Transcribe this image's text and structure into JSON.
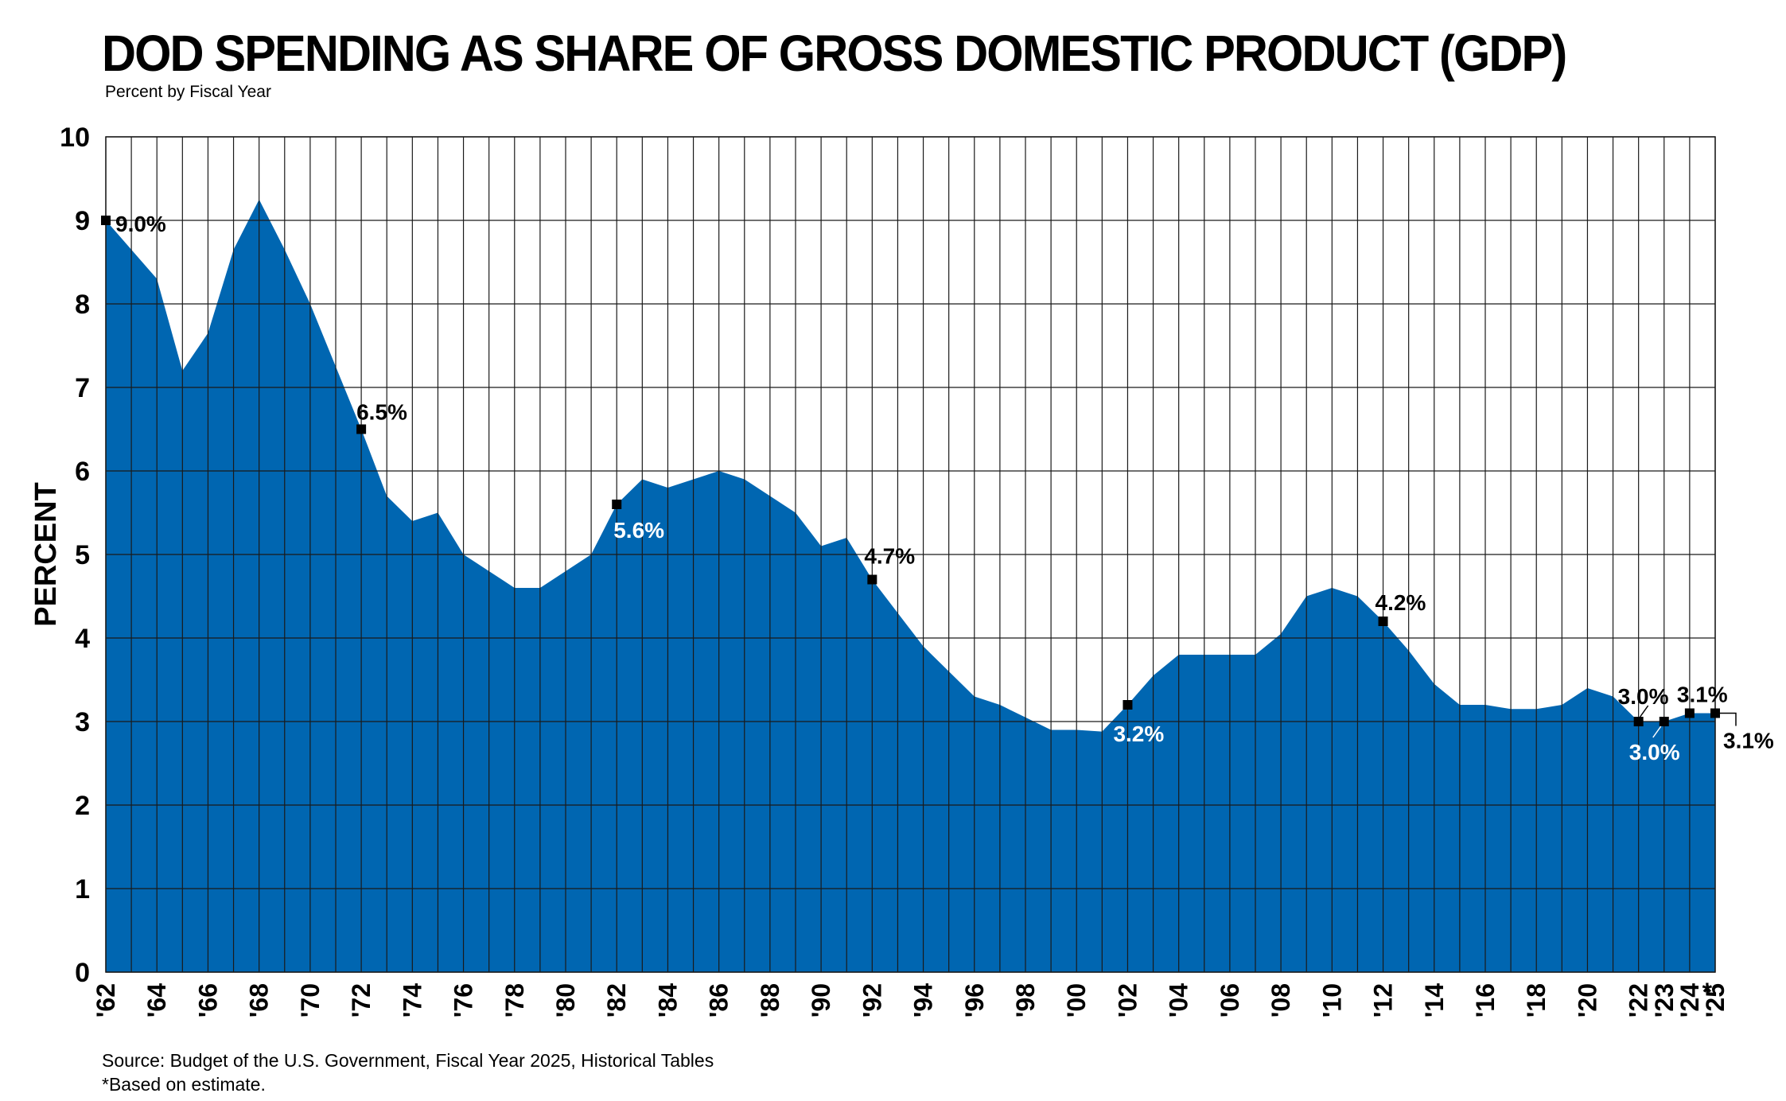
{
  "chart_data": {
    "type": "area",
    "title": "DOD SPENDING AS SHARE OF GROSS DOMESTIC PRODUCT (GDP)",
    "subtitle": "Percent by Fiscal Year",
    "ylabel": "PERCENT",
    "xlabel": "",
    "ylim": [
      0,
      10
    ],
    "yticks": [
      0,
      1,
      2,
      3,
      4,
      5,
      6,
      7,
      8,
      9,
      10
    ],
    "grid": true,
    "colors": {
      "area": "#0066b1",
      "grid": "#1a1a1a",
      "marker": "#000000"
    },
    "x": [
      1962,
      1963,
      1964,
      1965,
      1966,
      1967,
      1968,
      1969,
      1970,
      1971,
      1972,
      1973,
      1974,
      1975,
      1976,
      1977,
      1978,
      1979,
      1980,
      1981,
      1982,
      1983,
      1984,
      1985,
      1986,
      1987,
      1988,
      1989,
      1990,
      1991,
      1992,
      1993,
      1994,
      1995,
      1996,
      1997,
      1998,
      1999,
      2000,
      2001,
      2002,
      2003,
      2004,
      2005,
      2006,
      2007,
      2008,
      2009,
      2010,
      2011,
      2012,
      2013,
      2014,
      2015,
      2016,
      2017,
      2018,
      2019,
      2020,
      2021,
      2022,
      2023,
      2024,
      2025
    ],
    "values": [
      9.0,
      8.65,
      8.3,
      7.2,
      7.65,
      8.65,
      9.25,
      8.65,
      8.0,
      7.25,
      6.5,
      5.7,
      5.4,
      5.5,
      5.0,
      4.8,
      4.6,
      4.6,
      4.8,
      5.0,
      5.6,
      5.9,
      5.8,
      5.9,
      6.0,
      5.9,
      5.7,
      5.5,
      5.1,
      5.2,
      4.7,
      4.3,
      3.9,
      3.6,
      3.3,
      3.2,
      3.05,
      2.9,
      2.9,
      2.88,
      3.2,
      3.55,
      3.8,
      3.8,
      3.8,
      3.8,
      4.05,
      4.5,
      4.6,
      4.5,
      4.2,
      3.85,
      3.45,
      3.2,
      3.2,
      3.15,
      3.15,
      3.2,
      3.4,
      3.3,
      3.0,
      3.0,
      3.1,
      3.1
    ],
    "xtick_labels": [
      "'62",
      "'64",
      "'66",
      "'68",
      "'70",
      "'72",
      "'74",
      "'76",
      "'78",
      "'80",
      "'82",
      "'84",
      "'86",
      "'88",
      "'90",
      "'92",
      "'94",
      "'96",
      "'98",
      "'00",
      "'02",
      "'04",
      "'06",
      "'08",
      "'10",
      "'12",
      "'14",
      "'16",
      "'18",
      "'20",
      "'22",
      "'23",
      "'24",
      "'25"
    ],
    "xtick_years": [
      1962,
      1964,
      1966,
      1968,
      1970,
      1972,
      1974,
      1976,
      1978,
      1980,
      1982,
      1984,
      1986,
      1988,
      1990,
      1992,
      1994,
      1996,
      1998,
      2000,
      2002,
      2004,
      2006,
      2008,
      2010,
      2012,
      2014,
      2016,
      2018,
      2020,
      2022,
      2023,
      2024,
      2025
    ],
    "asterisk_year": 2024,
    "asterisk_text": "*",
    "annotations": [
      {
        "year": 1962,
        "value": 9.0,
        "text": "9.0%",
        "color": "#000000"
      },
      {
        "year": 1972,
        "value": 6.5,
        "text": "6.5%",
        "color": "#000000"
      },
      {
        "year": 1982,
        "value": 5.6,
        "text": "5.6%",
        "color": "#ffffff"
      },
      {
        "year": 1992,
        "value": 4.7,
        "text": "4.7%",
        "color": "#000000"
      },
      {
        "year": 2002,
        "value": 3.2,
        "text": "3.2%",
        "color": "#ffffff"
      },
      {
        "year": 2012,
        "value": 4.2,
        "text": "4.2%",
        "color": "#000000"
      },
      {
        "year": 2022,
        "value": 3.0,
        "text": "3.0%",
        "color": "#000000"
      },
      {
        "year": 2023,
        "value": 3.0,
        "text": "3.0%",
        "color": "#ffffff"
      },
      {
        "year": 2024,
        "value": 3.1,
        "text": "3.1%",
        "color": "#000000"
      },
      {
        "year": 2025,
        "value": 3.1,
        "text": "3.1%",
        "color": "#000000"
      }
    ]
  },
  "source": "Source: Budget of the U.S. Government, Fiscal Year 2025, Historical Tables",
  "note": "*Based on estimate."
}
